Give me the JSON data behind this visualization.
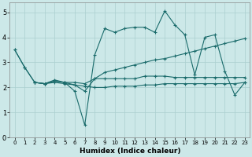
{
  "title": "",
  "xlabel": "Humidex (Indice chaleur)",
  "xlim": [
    -0.5,
    23.5
  ],
  "ylim": [
    0,
    5.4
  ],
  "yticks": [
    0,
    1,
    2,
    3,
    4,
    5
  ],
  "xticks": [
    0,
    1,
    2,
    3,
    4,
    5,
    6,
    7,
    8,
    9,
    10,
    11,
    12,
    13,
    14,
    15,
    16,
    17,
    18,
    19,
    20,
    21,
    22,
    23
  ],
  "bg_color": "#cce8e8",
  "grid_color": "#aacfcf",
  "line_color": "#1a6b6b",
  "line1_x": [
    0,
    1,
    2,
    3,
    4,
    5,
    6,
    7,
    8,
    9,
    10,
    11,
    12,
    13,
    14,
    15,
    16,
    17,
    18,
    19,
    20,
    21,
    22,
    23
  ],
  "line1_y": [
    3.5,
    2.8,
    2.2,
    2.15,
    2.3,
    2.2,
    1.85,
    0.5,
    3.3,
    4.35,
    4.2,
    4.35,
    4.4,
    4.4,
    4.2,
    5.05,
    4.5,
    4.1,
    2.5,
    4.0,
    4.1,
    2.65,
    1.7,
    2.2
  ],
  "line2_x": [
    0,
    1,
    2,
    3,
    4,
    5,
    6,
    7,
    8,
    9,
    10,
    11,
    12,
    13,
    14,
    15,
    16,
    17,
    18,
    19,
    20,
    21,
    22,
    23
  ],
  "line2_y": [
    3.5,
    2.8,
    2.2,
    2.15,
    2.25,
    2.2,
    2.1,
    1.85,
    2.35,
    2.6,
    2.7,
    2.8,
    2.9,
    3.0,
    3.1,
    3.15,
    3.25,
    3.35,
    3.45,
    3.55,
    3.65,
    3.75,
    3.85,
    3.95
  ],
  "line3_x": [
    2,
    3,
    4,
    5,
    6,
    7,
    8,
    9,
    10,
    11,
    12,
    13,
    14,
    15,
    16,
    17,
    18,
    19,
    20,
    21,
    22,
    23
  ],
  "line3_y": [
    2.2,
    2.15,
    2.25,
    2.2,
    2.2,
    2.15,
    2.35,
    2.35,
    2.35,
    2.35,
    2.35,
    2.45,
    2.45,
    2.45,
    2.4,
    2.4,
    2.4,
    2.4,
    2.4,
    2.4,
    2.4,
    2.4
  ],
  "line4_x": [
    2,
    3,
    4,
    5,
    6,
    7,
    8,
    9,
    10,
    11,
    12,
    13,
    14,
    15,
    16,
    17,
    18,
    19,
    20,
    21,
    22,
    23
  ],
  "line4_y": [
    2.2,
    2.15,
    2.2,
    2.15,
    2.1,
    2.05,
    2.0,
    2.0,
    2.05,
    2.05,
    2.05,
    2.1,
    2.1,
    2.15,
    2.15,
    2.15,
    2.15,
    2.15,
    2.15,
    2.15,
    2.15,
    2.2
  ]
}
